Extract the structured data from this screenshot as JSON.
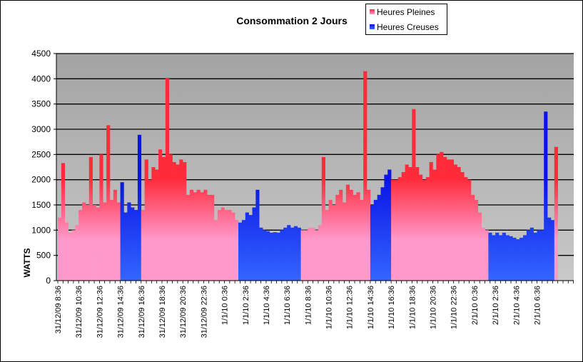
{
  "chart_data": {
    "type": "bar",
    "title": "Consommation 2 Jours",
    "xlabel": "",
    "ylabel": "WATTS",
    "ylim": [
      0,
      4500
    ],
    "yticks": [
      0,
      500,
      1000,
      1500,
      2000,
      2500,
      3000,
      3500,
      4000,
      4500
    ],
    "grid": true,
    "legend_position": "top-right",
    "sampling_minutes": 20,
    "x_tick_labels": [
      "31/12/09 8:36",
      "31/12/09 10:36",
      "31/12/09 12:36",
      "31/12/09 14:36",
      "31/12/09 16:36",
      "31/12/09 18:36",
      "31/12/09 20:36",
      "31/12/09 22:36",
      "1/1/10 0:36",
      "1/1/10 2:36",
      "1/1/10 4:36",
      "1/1/10 6:36",
      "1/1/10 8:36",
      "1/1/10 10:36",
      "1/1/10 12:36",
      "1/1/10 14:36",
      "1/1/10 16:36",
      "1/1/10 18:36",
      "1/1/10 20:36",
      "1/1/10 22:36",
      "2/1/10 0:36",
      "2/1/10 2:36",
      "2/1/10 4:36",
      "2/1/10 6:36"
    ],
    "values": [
      1250,
      2330,
      1150,
      950,
      1000,
      1100,
      1400,
      1550,
      1500,
      2450,
      1500,
      1450,
      2500,
      1550,
      3080,
      1600,
      1800,
      1550,
      1950,
      1350,
      1550,
      1450,
      1400,
      2890,
      1400,
      2400,
      2000,
      2250,
      2200,
      2600,
      2450,
      4020,
      2500,
      2350,
      2300,
      2400,
      2350,
      1700,
      1800,
      1750,
      1800,
      1750,
      1800,
      1700,
      1700,
      1200,
      1400,
      1450,
      1400,
      1400,
      1350,
      1200,
      1150,
      1200,
      1350,
      1300,
      1450,
      1800,
      1050,
      1000,
      980,
      950,
      960,
      950,
      1000,
      1050,
      1100,
      1050,
      1080,
      1050,
      1000,
      1000,
      1050,
      1050,
      1000,
      1100,
      2450,
      1400,
      1600,
      1500,
      1700,
      1800,
      1550,
      1900,
      1800,
      1700,
      1750,
      1600,
      4150,
      1800,
      1500,
      1600,
      1700,
      1850,
      2100,
      2200,
      2000,
      2000,
      2050,
      2150,
      2300,
      2250,
      3400,
      2250,
      2100,
      2000,
      2050,
      2350,
      2200,
      2500,
      2550,
      2450,
      2400,
      2400,
      2300,
      2250,
      2150,
      2050,
      2000,
      1700,
      1600,
      1350,
      1050,
      1000,
      950,
      900,
      950,
      900,
      950,
      900,
      880,
      850,
      820,
      850,
      900,
      1000,
      1050,
      950,
      1000,
      1000,
      3350,
      1250,
      1200,
      2650
    ],
    "tariff": "HP:0-17,HC:18-23,HP:24-51,HC:52-69,HP:70-89,HC:90-95,HP:96-123,HC:124-142,HP:143",
    "series": [
      {
        "name": "Heures Pleines",
        "code": "HP",
        "color": "#ff2a3a",
        "color_light": "#ff99cc"
      },
      {
        "name": "Heures Creuses",
        "code": "HC",
        "color": "#0a14e6",
        "color_light": "#3366ff"
      }
    ]
  },
  "colors": {
    "plot_bg_top": "#a3a3a3",
    "plot_bg_bottom": "#c9c9c9",
    "gridline": "#000000"
  }
}
